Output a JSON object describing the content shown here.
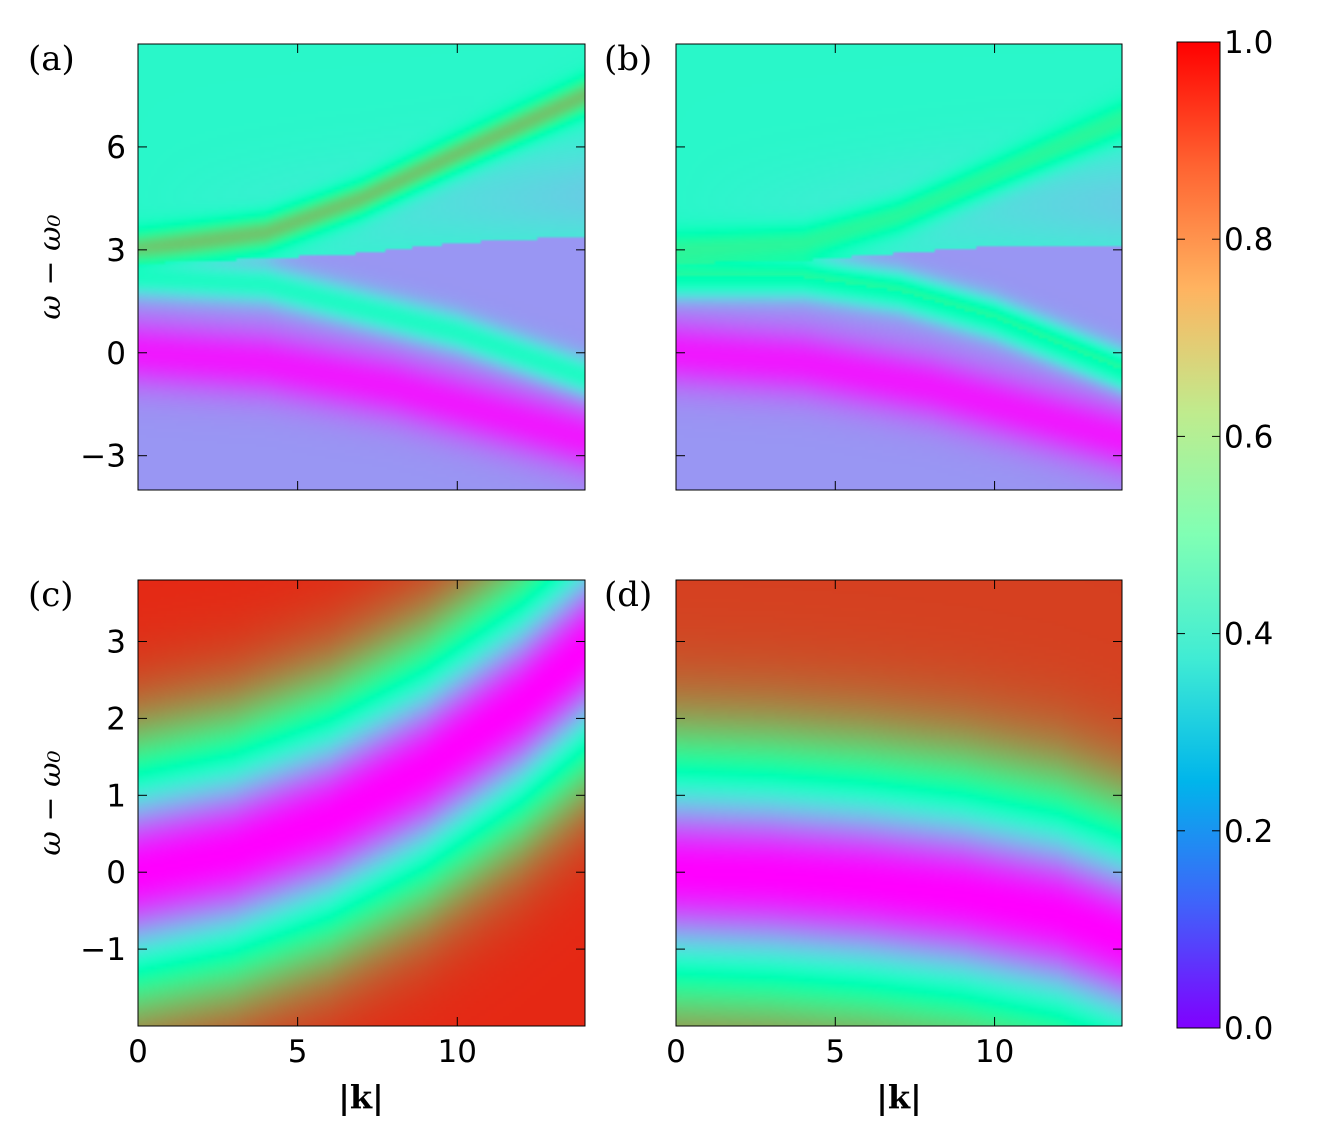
{
  "chart_data": {
    "type": "heatmap",
    "colormap": "rainbow",
    "panels": [
      {
        "label": "(a)",
        "xlim": [
          0,
          14
        ],
        "ylim": [
          -4,
          9
        ],
        "x_ticks": [
          0,
          5,
          10
        ],
        "y_ticks": [
          -3,
          0,
          3,
          6
        ],
        "x_tick_labels": [],
        "y_tick_labels": [
          "−3",
          "0",
          "3",
          "6"
        ],
        "xlabel": "",
        "ylabel": "ω − ω₀",
        "features": {
          "upper_branch": {
            "x": [
              0,
              4,
              7,
              10,
              14
            ],
            "y": [
              3.0,
              3.5,
              4.5,
              5.8,
              7.5
            ],
            "value": 0.75
          },
          "lower_branch": {
            "x": [
              0,
              4,
              7,
              10,
              14
            ],
            "y": [
              2.2,
              2.0,
              1.3,
              0.6,
              -0.7
            ],
            "value": 0.5
          },
          "dark_region": {
            "x": [
              0,
              4,
              8,
              12,
              14
            ],
            "y": [
              0,
              -0.3,
              -1,
              -2,
              -2.5
            ],
            "value": 0.05
          }
        }
      },
      {
        "label": "(b)",
        "xlim": [
          0,
          14
        ],
        "ylim": [
          -4,
          9
        ],
        "x_ticks": [
          0,
          5,
          10
        ],
        "y_ticks": [
          -3,
          0,
          3,
          6
        ],
        "x_tick_labels": [],
        "y_tick_labels": [],
        "xlabel": "",
        "ylabel": "",
        "features": {
          "upper_branch": {
            "x": [
              0,
              4,
              7,
              10,
              14
            ],
            "y": [
              3.0,
              3.2,
              4.0,
              5.2,
              6.8
            ],
            "value": 0.6
          },
          "lower_branch": {
            "x": [
              0,
              4,
              7,
              10,
              14
            ],
            "y": [
              2.2,
              2.2,
              1.8,
              1.0,
              -0.5
            ],
            "value": 0.65
          },
          "dark_region": {
            "x": [
              0,
              4,
              8,
              12,
              14
            ],
            "y": [
              0,
              -0.3,
              -1,
              -2,
              -2.5
            ],
            "value": 0.05
          }
        }
      },
      {
        "label": "(c)",
        "xlim": [
          0,
          14
        ],
        "ylim": [
          -2,
          3.8
        ],
        "x_ticks": [
          0,
          5,
          10
        ],
        "y_ticks": [
          -1,
          0,
          1,
          2,
          3
        ],
        "x_tick_labels": [
          "0",
          "5",
          "10"
        ],
        "y_tick_labels": [
          "−1",
          "0",
          "1",
          "2",
          "3"
        ],
        "xlabel": "|k|",
        "ylabel": "ω − ω₀",
        "features": {
          "minimum_curve": {
            "x": [
              0,
              3,
              6,
              9,
              12,
              14
            ],
            "y": [
              0.0,
              0.25,
              0.7,
              1.35,
              2.2,
              2.9
            ],
            "value": 0.0
          },
          "far_value": 0.95
        }
      },
      {
        "label": "(d)",
        "xlim": [
          0,
          14
        ],
        "ylim": [
          -2,
          3.8
        ],
        "x_ticks": [
          0,
          5,
          10
        ],
        "y_ticks": [
          -1,
          0,
          1,
          2,
          3
        ],
        "x_tick_labels": [
          "0",
          "5",
          "10"
        ],
        "y_tick_labels": [],
        "xlabel": "|k|",
        "ylabel": "",
        "features": {
          "minimum_curve": {
            "x": [
              0,
              3,
              6,
              9,
              12,
              14
            ],
            "y": [
              0.0,
              -0.05,
              -0.15,
              -0.3,
              -0.55,
              -0.85
            ],
            "value": 0.0
          },
          "far_value": 0.92
        }
      }
    ],
    "colorbar": {
      "range": [
        0.0,
        1.0
      ],
      "ticks": [
        0.0,
        0.2,
        0.4,
        0.6,
        0.8,
        1.0
      ],
      "tick_labels": [
        "0.0",
        "0.2",
        "0.4",
        "0.6",
        "0.8",
        "1.0"
      ]
    },
    "grid": false
  }
}
